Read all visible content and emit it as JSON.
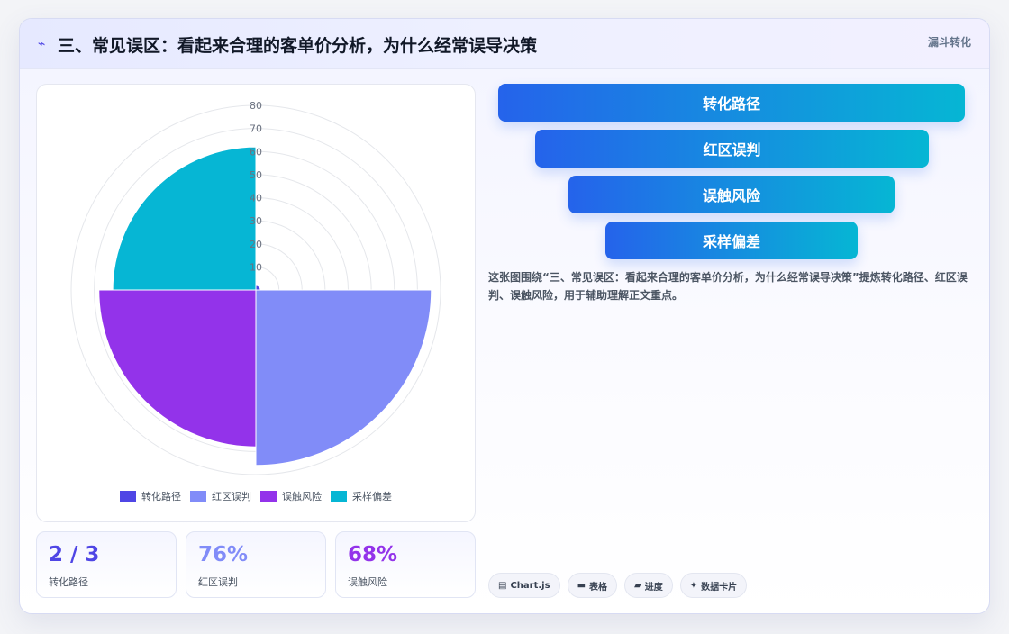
{
  "header": {
    "icon": "sparkle-icon",
    "title": "三、常见误区：看起来合理的客单价分析，为什么经常误导决策",
    "tag": "漏斗转化"
  },
  "chart_data": {
    "type": "polarArea",
    "categories": [
      "转化路径",
      "红区误判",
      "误触风险",
      "采样偏差"
    ],
    "values": [
      2,
      76,
      68,
      62
    ],
    "colors": [
      "#4f46e5",
      "#818cf8",
      "#9333ea",
      "#06b6d4"
    ],
    "rlim": [
      0,
      80
    ],
    "ticks": [
      0,
      10,
      20,
      30,
      40,
      50,
      60,
      70,
      80
    ],
    "tick_labels": [
      "",
      "10",
      "20",
      "30",
      "40",
      "50",
      "60",
      "70",
      "80"
    ],
    "legend_position": "bottom"
  },
  "stats": [
    {
      "value": "2 / 3",
      "label": "转化路径",
      "color": "#4f46e5"
    },
    {
      "value": "76%",
      "label": "红区误判",
      "color": "#818cf8"
    },
    {
      "value": "68%",
      "label": "误触风险",
      "color": "#9333ea"
    }
  ],
  "funnel": [
    "转化路径",
    "红区误判",
    "误触风险",
    "采样偏差"
  ],
  "description": "这张图围绕“三、常见误区：看起来合理的客单价分析，为什么经常误导决策”提炼转化路径、红区误判、误触风险，用于辅助理解正文重点。",
  "chips": [
    {
      "icon": "chart-icon",
      "glyph": "▤",
      "label": "Chart.js"
    },
    {
      "icon": "table-icon",
      "glyph": "▬",
      "label": "表格"
    },
    {
      "icon": "progress-icon",
      "glyph": "▰",
      "label": "进度"
    },
    {
      "icon": "card-icon",
      "glyph": "✦",
      "label": "数据卡片"
    }
  ]
}
